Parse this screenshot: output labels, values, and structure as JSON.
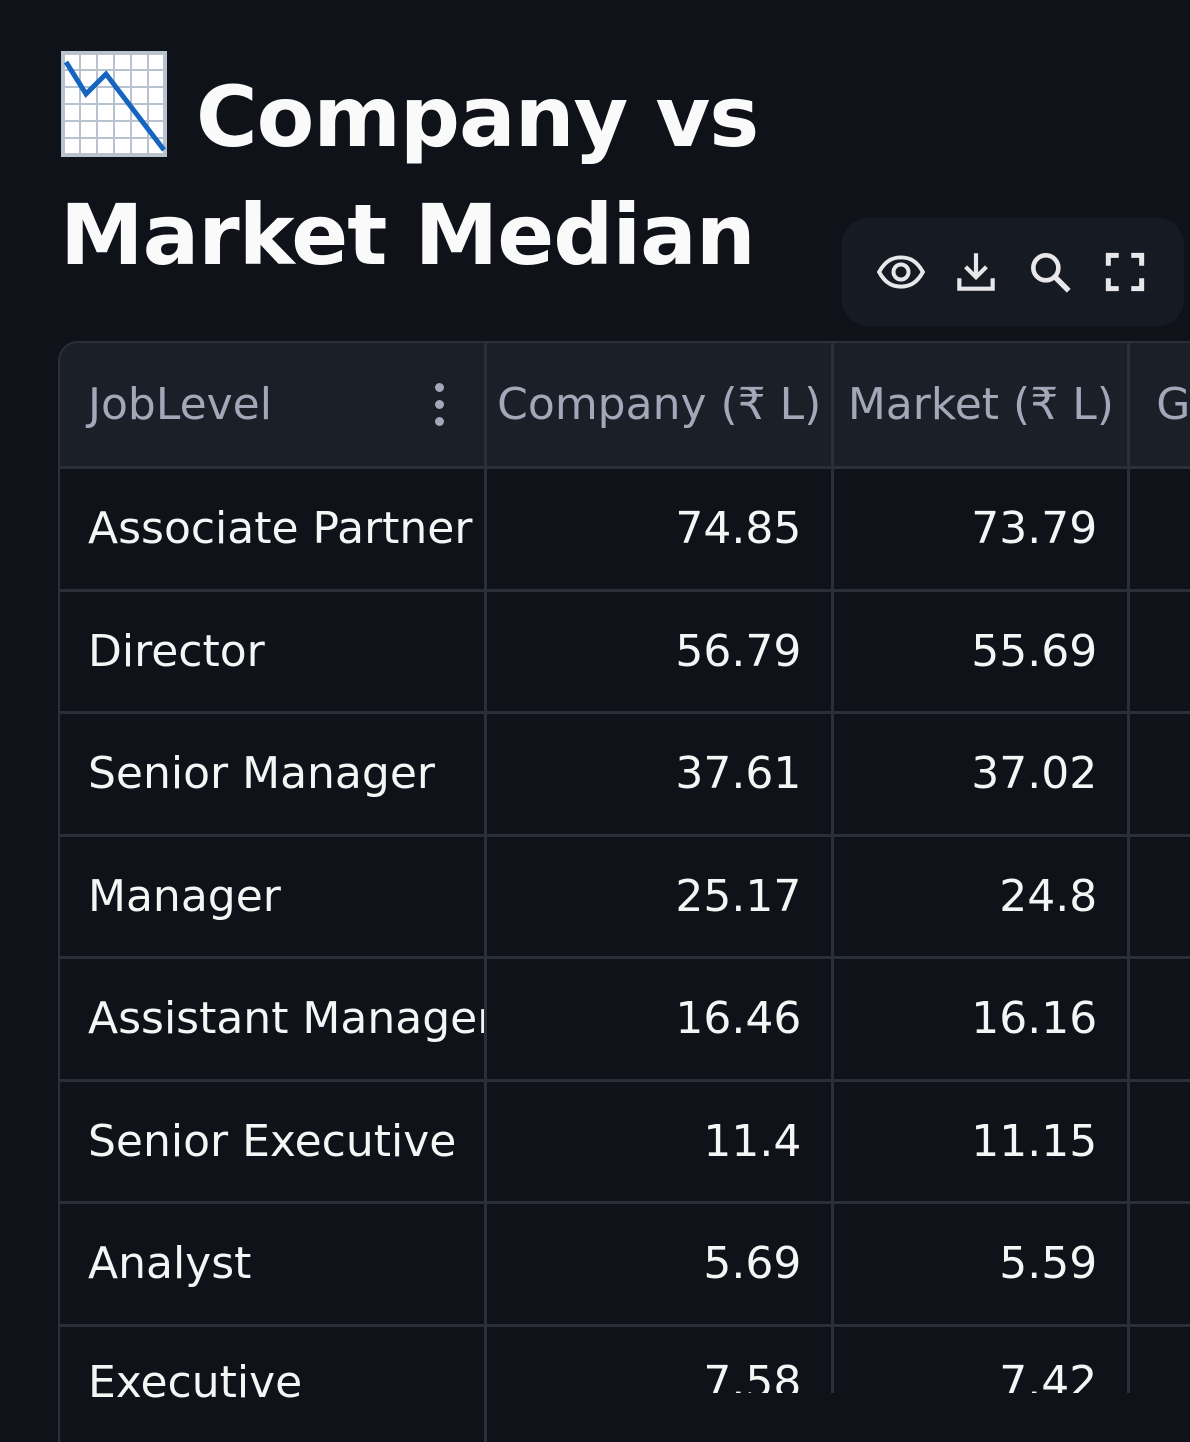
{
  "page": {
    "title": "Company vs Market Median",
    "title_icon": "chart-decreasing-emoji"
  },
  "toolbar": {
    "icons": [
      "eye-icon",
      "download-icon",
      "search-icon",
      "fullscreen-icon"
    ]
  },
  "table": {
    "columns": [
      "JobLevel",
      "Company (₹ L)",
      "Market (₹ L)",
      "G"
    ],
    "rows": [
      {
        "level": "Associate Partner",
        "company": "74.85",
        "market": "73.79"
      },
      {
        "level": "Director",
        "company": "56.79",
        "market": "55.69"
      },
      {
        "level": "Senior Manager",
        "company": "37.61",
        "market": "37.02"
      },
      {
        "level": "Manager",
        "company": "25.17",
        "market": "24.8"
      },
      {
        "level": "Assistant Manager",
        "company": "16.46",
        "market": "16.16"
      },
      {
        "level": "Senior Executive",
        "company": "11.4",
        "market": "11.15"
      },
      {
        "level": "Analyst",
        "company": "5.69",
        "market": "5.59"
      },
      {
        "level": "Executive",
        "company": "7.58",
        "market": "7.42"
      }
    ]
  },
  "colors": {
    "background": "#0f1218",
    "header_bg": "#1b1f28",
    "grid_line": "#2a2f3a",
    "chart_emoji_line": "#1565c0"
  }
}
